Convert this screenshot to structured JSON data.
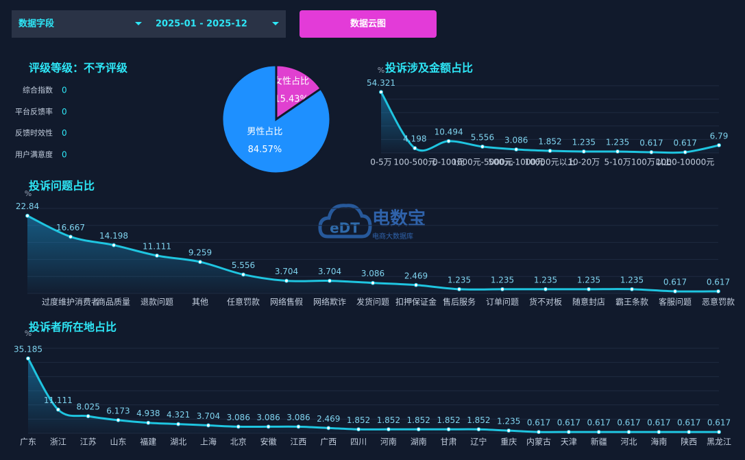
{
  "header": {
    "field_select": "数据字段",
    "date_range": "2025-01 - 2025-12",
    "button": "数据云图"
  },
  "rating": {
    "title": "评级等级：不予评级",
    "metrics": [
      {
        "label": "综合指数",
        "value": 0
      },
      {
        "label": "平台反馈率",
        "value": 0
      },
      {
        "label": "反馈时效性",
        "value": 0
      },
      {
        "label": "用户满意度",
        "value": 0
      }
    ]
  },
  "watermark": {
    "brand": "电数宝",
    "logo": "eDT",
    "tagline": "电商大数据库"
  },
  "chart_data": [
    {
      "type": "pie",
      "categories": [
        "女性占比",
        "男性占比"
      ],
      "values": [
        15.43,
        84.57
      ],
      "value_labels": [
        "15.43%",
        "84.57%"
      ],
      "colors": [
        "#e040d0",
        "#1e90ff"
      ]
    },
    {
      "type": "line",
      "title": "投诉涉及金额占比",
      "y_label": "%",
      "color": "#1fc5e0",
      "ylim": [
        0,
        60
      ],
      "categories": [
        "0-5万",
        "100-500元",
        "0-100元",
        "1000元-5000元",
        "500元-1000元",
        "10000元以上",
        "10-20万",
        "5-10万",
        "100万以上",
        "1000-10000元",
        null
      ],
      "values": [
        54.321,
        4.198,
        10.494,
        5.556,
        3.086,
        1.852,
        1.235,
        1.235,
        0.617,
        0.617,
        6.79
      ]
    },
    {
      "type": "line",
      "title": "投诉问题占比",
      "y_label": "%",
      "color": "#1fc5e0",
      "ylim": [
        0,
        25
      ],
      "categories": [
        null,
        "过度维护消费者",
        "商品质量",
        "退款问题",
        "其他",
        "任意罚款",
        "网络售假",
        "网络欺诈",
        "发货问题",
        "扣押保证金",
        "售后服务",
        "订单问题",
        "货不对板",
        "随意封店",
        "霸王条款",
        "客服问题",
        "恶意罚款"
      ],
      "values": [
        22.84,
        16.667,
        14.198,
        11.111,
        9.259,
        5.556,
        3.704,
        3.704,
        3.086,
        2.469,
        1.235,
        1.235,
        1.235,
        1.235,
        1.235,
        0.617,
        0.617
      ]
    },
    {
      "type": "line",
      "title": "投诉者所在地占比",
      "y_label": "%",
      "color": "#1fc5e0",
      "ylim": [
        0,
        40
      ],
      "categories": [
        "广东",
        "浙江",
        "江苏",
        "山东",
        "福建",
        "湖北",
        "上海",
        "北京",
        "安徽",
        "江西",
        "广西",
        "四川",
        "河南",
        "湖南",
        "甘肃",
        "辽宁",
        "重庆",
        "内蒙古",
        "天津",
        "新疆",
        "河北",
        "海南",
        "陕西",
        "黑龙江"
      ],
      "values": [
        35.185,
        11.111,
        8.025,
        6.173,
        4.938,
        4.321,
        3.704,
        3.086,
        3.086,
        3.086,
        2.469,
        1.852,
        1.852,
        1.852,
        1.852,
        1.852,
        1.235,
        0.617,
        0.617,
        0.617,
        0.617,
        0.617,
        0.617,
        0.617
      ]
    }
  ]
}
